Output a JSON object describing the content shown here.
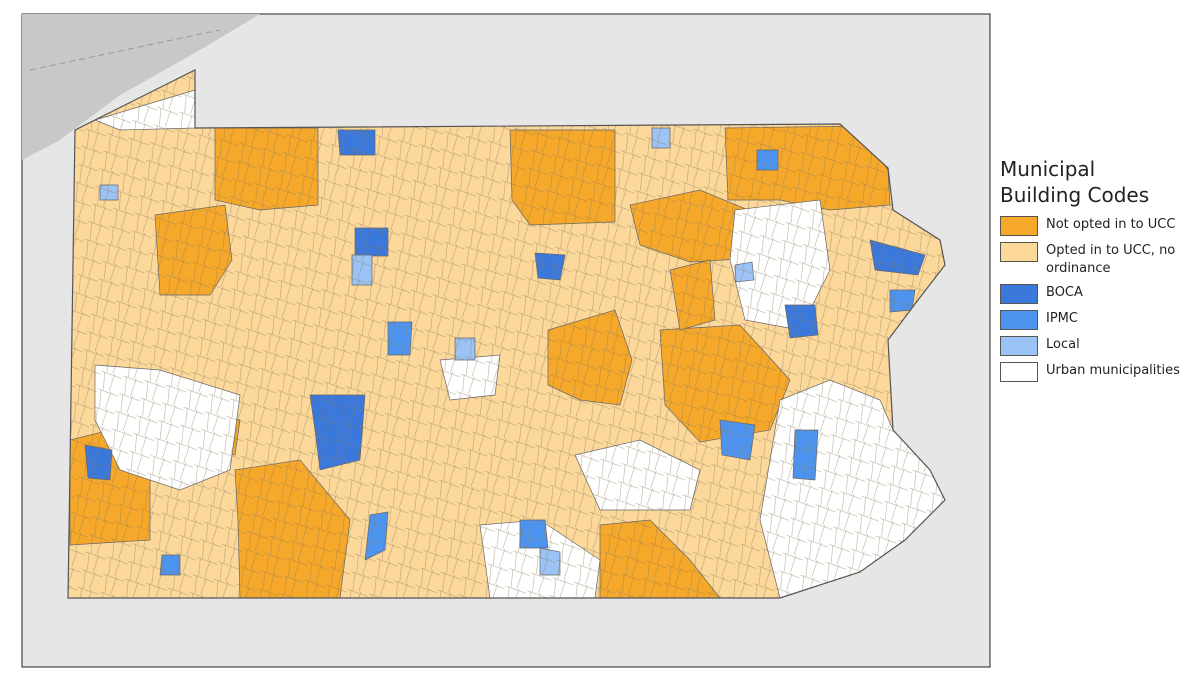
{
  "legend": {
    "title": "Municipal Building Codes",
    "items": [
      {
        "label": "Not opted in to UCC",
        "color": "#f5a82a"
      },
      {
        "label": "Opted in to UCC, no ordinance",
        "color": "#fcd89b"
      },
      {
        "label": "BOCA",
        "color": "#3a78dc"
      },
      {
        "label": "IPMC",
        "color": "#4d94f0"
      },
      {
        "label": "Local",
        "color": "#9cc3f5"
      },
      {
        "label": "Urban municipalities",
        "color": "#ffffff"
      }
    ]
  }
}
